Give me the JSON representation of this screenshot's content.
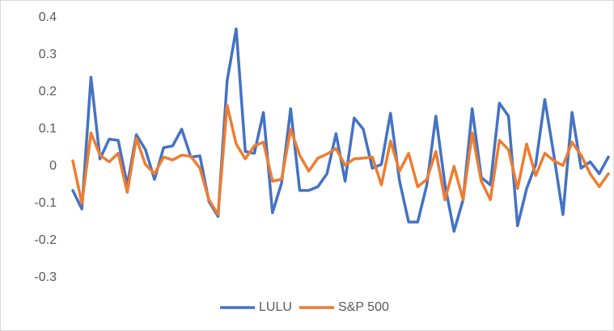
{
  "chart_data": {
    "type": "line",
    "categories": [
      null,
      null,
      null,
      null,
      null,
      null,
      null,
      null,
      null,
      null,
      null,
      null,
      null,
      null,
      null,
      null,
      null,
      null,
      null,
      null,
      null,
      null,
      null,
      null,
      null,
      null,
      null,
      null,
      null,
      null,
      null,
      null,
      null,
      null,
      null,
      null,
      null,
      null,
      null,
      null,
      null,
      null,
      null,
      null,
      null,
      null,
      null,
      null,
      null,
      null,
      null,
      null,
      null,
      null,
      null,
      null,
      null,
      null,
      null,
      null
    ],
    "series": [
      {
        "name": "LULU",
        "color": "#4472c4",
        "values": [
          -0.065,
          -0.115,
          0.24,
          0.02,
          0.073,
          0.07,
          -0.05,
          0.085,
          0.045,
          -0.035,
          0.05,
          0.055,
          0.1,
          0.025,
          0.028,
          -0.095,
          -0.135,
          0.23,
          0.37,
          0.04,
          0.035,
          0.145,
          -0.125,
          -0.045,
          0.155,
          -0.065,
          -0.065,
          -0.055,
          -0.02,
          0.088,
          -0.04,
          0.13,
          0.1,
          -0.005,
          0.005,
          0.143,
          -0.04,
          -0.15,
          -0.15,
          -0.05,
          0.135,
          -0.05,
          -0.175,
          -0.09,
          0.155,
          -0.03,
          -0.05,
          0.17,
          0.135,
          -0.16,
          -0.06,
          0.005,
          0.18,
          0.03,
          -0.13,
          0.145,
          -0.005,
          0.012,
          -0.02,
          0.025
        ]
      },
      {
        "name": "S&P 500",
        "color": "#ed7d31",
        "values": [
          0.015,
          -0.1,
          0.09,
          0.03,
          0.012,
          0.035,
          -0.07,
          0.075,
          0.005,
          -0.02,
          0.025,
          0.017,
          0.03,
          0.027,
          -0.005,
          -0.09,
          -0.13,
          0.165,
          0.06,
          0.02,
          0.055,
          0.065,
          -0.04,
          -0.035,
          0.1,
          0.03,
          -0.013,
          0.022,
          0.033,
          0.048,
          0.003,
          0.02,
          0.022,
          0.025,
          -0.05,
          0.068,
          -0.013,
          0.035,
          -0.055,
          -0.035,
          0.04,
          -0.09,
          0.0,
          -0.09,
          0.09,
          -0.04,
          -0.09,
          0.07,
          0.045,
          -0.06,
          0.06,
          -0.025,
          0.035,
          0.015,
          0.002,
          0.065,
          0.03,
          -0.02,
          -0.055,
          -0.02
        ]
      }
    ],
    "ylim": [
      -0.3,
      0.4
    ],
    "yticks": [
      0.4,
      0.3,
      0.2,
      0.1,
      0,
      -0.1,
      -0.2,
      -0.3
    ],
    "grid": false,
    "legend": "bottom"
  }
}
